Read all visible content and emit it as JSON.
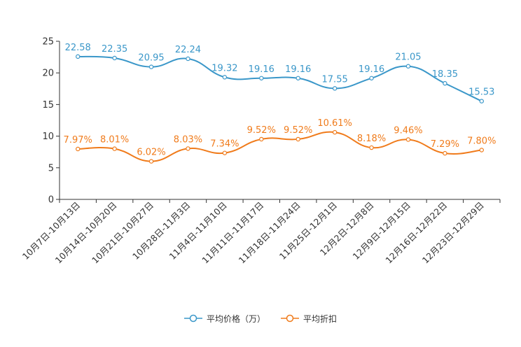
{
  "chart_data": {
    "type": "line",
    "title": "",
    "xlabel": "",
    "ylabel": "",
    "ylim": [
      0,
      25
    ],
    "yticks": [
      0,
      5,
      10,
      15,
      20,
      25
    ],
    "grid": false,
    "legend_position": "bottom",
    "categories": [
      "10月7日-10月13日",
      "10月14日-10月20日",
      "10月21日-10月27日",
      "10月28日-11月3日",
      "11月4日-11月10日",
      "11月11日-11月17日",
      "11月18日-11月24日",
      "11月25日-12月1日",
      "12月2日-12月8日",
      "12月9日-12月15日",
      "12月16日-12月22日",
      "12月23日-12月29日"
    ],
    "series": [
      {
        "name": "平均价格（万）",
        "color": "#3a97c9",
        "values": [
          22.58,
          22.35,
          20.95,
          22.24,
          19.32,
          19.16,
          19.16,
          17.55,
          19.16,
          21.05,
          18.35,
          15.53
        ],
        "labels": [
          "22.58",
          "22.35",
          "20.95",
          "22.24",
          "19.32",
          "19.16",
          "19.16",
          "17.55",
          "19.16",
          "21.05",
          "18.35",
          "15.53"
        ]
      },
      {
        "name": "平均折扣",
        "color": "#f07b1b",
        "values": [
          7.97,
          8.01,
          6.02,
          8.03,
          7.34,
          9.52,
          9.52,
          10.61,
          8.18,
          9.46,
          7.29,
          7.8
        ],
        "labels": [
          "7.97%",
          "8.01%",
          "6.02%",
          "8.03%",
          "7.34%",
          "9.52%",
          "9.52%",
          "10.61%",
          "8.18%",
          "9.46%",
          "7.29%",
          "7.80%"
        ]
      }
    ]
  }
}
